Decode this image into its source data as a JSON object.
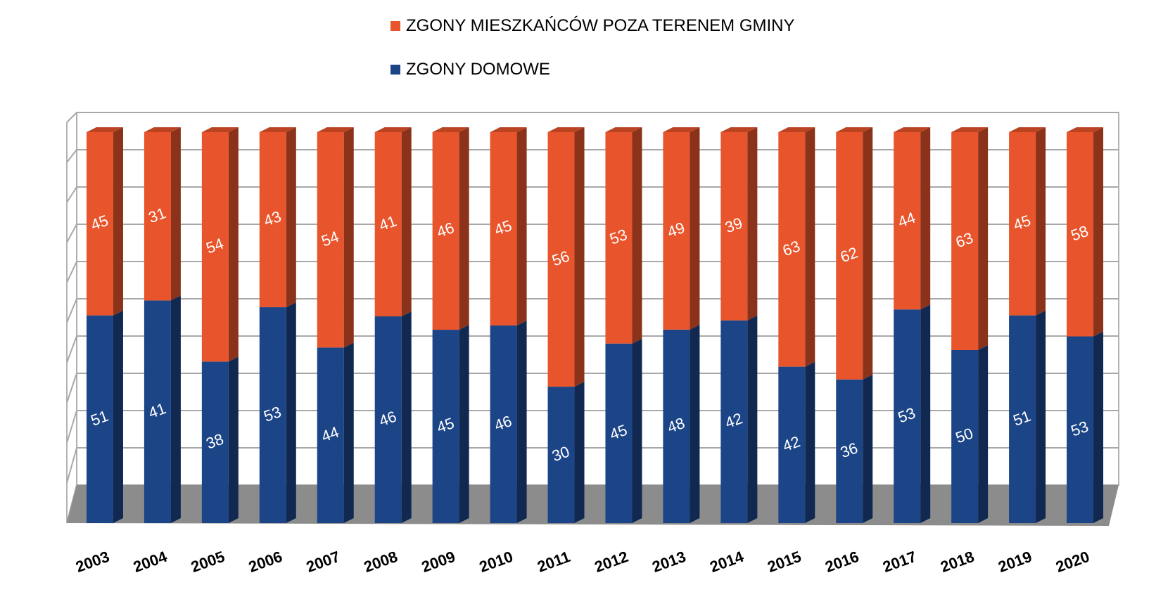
{
  "chart_data": {
    "type": "bar",
    "stacked": true,
    "normalized": true,
    "categories": [
      "2003",
      "2004",
      "2005",
      "2006",
      "2007",
      "2008",
      "2009",
      "2010",
      "2011",
      "2012",
      "2013",
      "2014",
      "2015",
      "2016",
      "2017",
      "2018",
      "2019",
      "2020"
    ],
    "series": [
      {
        "name": "ZGONY DOMOWE",
        "color": "#1C4587",
        "values": [
          51,
          41,
          38,
          53,
          44,
          46,
          45,
          46,
          30,
          45,
          48,
          42,
          42,
          36,
          53,
          50,
          51,
          53
        ]
      },
      {
        "name": "ZGONY MIESZKAŃCÓW POZA TERENEM GMINY",
        "color": "#E8542B",
        "values": [
          45,
          31,
          54,
          43,
          54,
          41,
          46,
          45,
          56,
          53,
          49,
          39,
          63,
          62,
          44,
          63,
          45,
          58
        ]
      }
    ],
    "legend": "top",
    "grid": true,
    "style": "3d"
  }
}
